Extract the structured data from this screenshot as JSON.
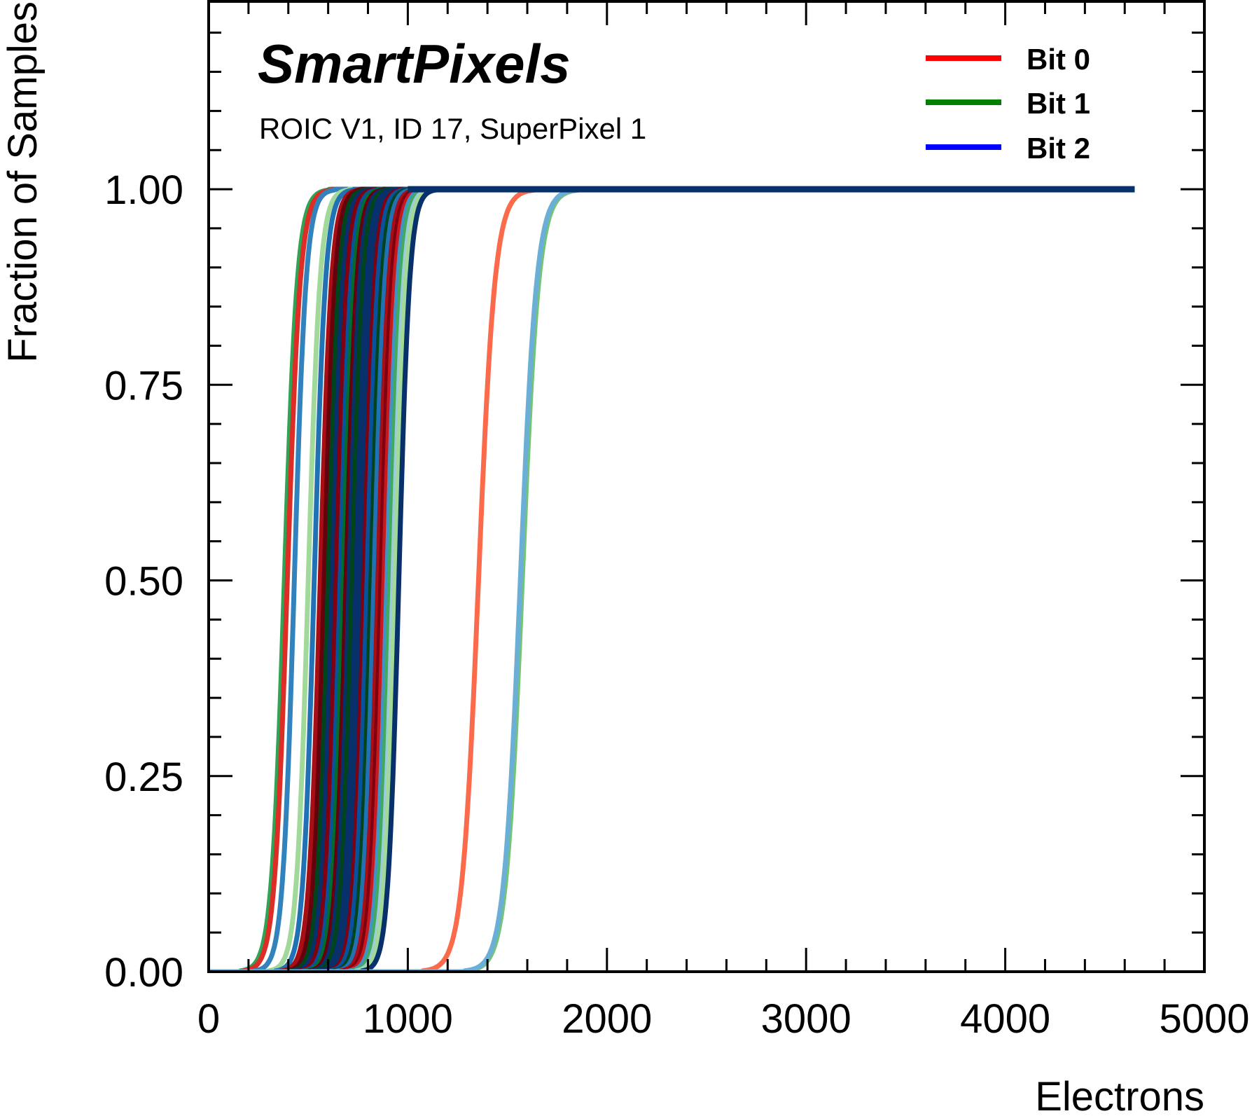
{
  "chart_data": {
    "type": "line",
    "title": "SmartPixels",
    "subtitle": "ROIC V1, ID 17, SuperPixel 1",
    "xlabel": "Electrons",
    "ylabel": "Fraction of Samples",
    "xlim": [
      0,
      5000
    ],
    "ylim": [
      0,
      1.24
    ],
    "x_ticks": [
      0,
      1000,
      2000,
      3000,
      4000,
      5000
    ],
    "x_tick_labels": [
      "0",
      "1000",
      "2000",
      "3000",
      "4000",
      "5000"
    ],
    "x_minor_step": 200,
    "y_ticks": [
      0,
      0.25,
      0.5,
      0.75,
      1.0
    ],
    "y_tick_labels": [
      "0.00",
      "0.25",
      "0.50",
      "0.75",
      "1.00"
    ],
    "y_minor_step": 0.05,
    "grid": false,
    "legend_position": "top-right",
    "legend": [
      {
        "label": "Bit 0",
        "color": "#ff0000"
      },
      {
        "label": "Bit 1",
        "color": "#008000"
      },
      {
        "label": "Bit 2",
        "color": "#0000ff"
      }
    ],
    "x_end": 4650,
    "series": [
      {
        "name": "Bit 1 curve",
        "color": "#31a354",
        "mid": 380,
        "width": 55
      },
      {
        "name": "Bit 0 curve",
        "color": "#de2d26",
        "mid": 395,
        "width": 55
      },
      {
        "name": "Bit 2 curve",
        "color": "#3182bd",
        "mid": 430,
        "width": 50
      },
      {
        "name": "Bit 1 curve",
        "color": "#a1d99b",
        "mid": 500,
        "width": 50
      },
      {
        "name": "Bit 2 curve",
        "color": "#2171b5",
        "mid": 530,
        "width": 48
      },
      {
        "name": "Bit 0 curve",
        "color": "#a50f15",
        "mid": 560,
        "width": 48
      },
      {
        "name": "Bit 0 curve",
        "color": "#67000d",
        "mid": 580,
        "width": 46
      },
      {
        "name": "Bit 1 curve",
        "color": "#00441b",
        "mid": 600,
        "width": 46
      },
      {
        "name": "Bit 2 curve",
        "color": "#08306b",
        "mid": 620,
        "width": 46
      },
      {
        "name": "Bit 0 curve",
        "color": "#7f0010",
        "mid": 640,
        "width": 46
      },
      {
        "name": "Bit 2 curve",
        "color": "#08519c",
        "mid": 660,
        "width": 46
      },
      {
        "name": "Bit 1 curve",
        "color": "#006d2c",
        "mid": 675,
        "width": 46
      },
      {
        "name": "Bit 0 curve",
        "color": "#67000d",
        "mid": 690,
        "width": 46
      },
      {
        "name": "Bit 2 curve",
        "color": "#08306b",
        "mid": 705,
        "width": 46
      },
      {
        "name": "Bit 1 curve",
        "color": "#00441b",
        "mid": 720,
        "width": 46
      },
      {
        "name": "Bit 2 curve",
        "color": "#08306b",
        "mid": 740,
        "width": 46
      },
      {
        "name": "Bit 2 curve",
        "color": "#08306b",
        "mid": 760,
        "width": 46
      },
      {
        "name": "Bit 0 curve",
        "color": "#7f0010",
        "mid": 780,
        "width": 46
      },
      {
        "name": "Bit 2 curve",
        "color": "#08519c",
        "mid": 795,
        "width": 46
      },
      {
        "name": "Bit 1 curve",
        "color": "#00441b",
        "mid": 815,
        "width": 46
      },
      {
        "name": "Bit 2 curve",
        "color": "#2171b5",
        "mid": 830,
        "width": 46
      },
      {
        "name": "Bit 0 curve",
        "color": "#a50f15",
        "mid": 850,
        "width": 46
      },
      {
        "name": "Bit 0 curve",
        "color": "#7f0010",
        "mid": 865,
        "width": 46
      },
      {
        "name": "Bit 0 curve",
        "color": "#cb181d",
        "mid": 880,
        "width": 46
      },
      {
        "name": "Bit 2 curve",
        "color": "#4292c6",
        "mid": 895,
        "width": 46
      },
      {
        "name": "Bit 1 curve",
        "color": "#41ab5d",
        "mid": 910,
        "width": 46
      },
      {
        "name": "Bit 2 curve",
        "color": "#9ecae1",
        "mid": 925,
        "width": 46
      },
      {
        "name": "Bit 1 curve",
        "color": "#a1d99b",
        "mid": 935,
        "width": 46
      },
      {
        "name": "Bit 2 curve",
        "color": "#08306b",
        "mid": 955,
        "width": 46
      },
      {
        "name": "Bit 0 curve",
        "color": "#fb6a4a",
        "mid": 1355,
        "width": 70
      },
      {
        "name": "Bit 1 curve",
        "color": "#74c476",
        "mid": 1575,
        "width": 70
      },
      {
        "name": "Bit 2 curve",
        "color": "#6baed6",
        "mid": 1565,
        "width": 70
      }
    ]
  }
}
